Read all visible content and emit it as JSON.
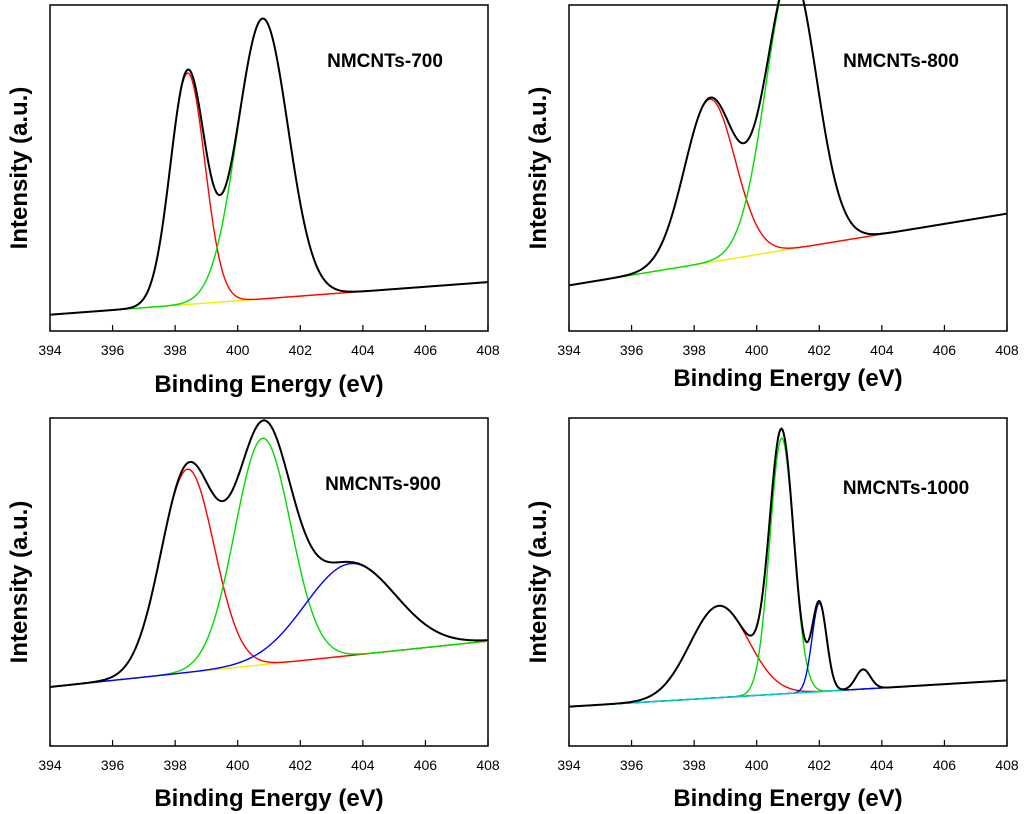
{
  "chart_data": [
    {
      "type": "line",
      "title": "NMCNTs-700",
      "xlabel": "Binding Energy (eV)",
      "ylabel": "Intensity (a.u.)",
      "xlim": [
        394,
        408
      ],
      "x_ticks": [
        "394",
        "396",
        "398",
        "400",
        "402",
        "404",
        "406",
        "408"
      ],
      "ylim": [
        0,
        100
      ],
      "baseline": {
        "x": [
          394,
          408
        ],
        "y": [
          5,
          15
        ]
      },
      "series": [
        {
          "name": "envelope",
          "color": "#000000",
          "values": "sum"
        },
        {
          "name": "peak-398.4",
          "color": "#ff0000",
          "center": 398.4,
          "fwhm": 1.3,
          "height": 71
        },
        {
          "name": "peak-400.8",
          "color": "#00dd00",
          "center": 400.8,
          "fwhm": 1.9,
          "height": 86
        }
      ],
      "baseline_color": "#eeee00"
    },
    {
      "type": "line",
      "title": "NMCNTs-800",
      "xlabel": "Binding Energy (eV)",
      "ylabel": "Intensity (a.u.)",
      "xlim": [
        394,
        408
      ],
      "x_ticks": [
        "394",
        "396",
        "398",
        "400",
        "402",
        "404",
        "406",
        "408"
      ],
      "ylim": [
        0,
        100
      ],
      "baseline": {
        "x": [
          394,
          408
        ],
        "y": [
          14,
          36
        ]
      },
      "series": [
        {
          "name": "envelope",
          "color": "#000000",
          "values": "sum"
        },
        {
          "name": "peak-398.5",
          "color": "#ff0000",
          "center": 398.5,
          "fwhm": 1.9,
          "height": 50
        },
        {
          "name": "peak-401.1",
          "color": "#00dd00",
          "center": 401.1,
          "fwhm": 1.9,
          "height": 85
        }
      ],
      "baseline_color": "#eeee00"
    },
    {
      "type": "line",
      "title": "NMCNTs-900",
      "xlabel": "Binding Energy (eV)",
      "ylabel": "Intensity (a.u.)",
      "xlim": [
        394,
        408
      ],
      "x_ticks": [
        "394",
        "396",
        "398",
        "400",
        "402",
        "404",
        "406",
        "408"
      ],
      "ylim": [
        0,
        100
      ],
      "baseline": {
        "x": [
          394,
          408
        ],
        "y": [
          18,
          32
        ]
      },
      "series": [
        {
          "name": "envelope",
          "color": "#000000",
          "values": "sum"
        },
        {
          "name": "peak-398.4",
          "color": "#ff0000",
          "center": 398.4,
          "fwhm": 2.0,
          "height": 62
        },
        {
          "name": "peak-400.8",
          "color": "#00dd00",
          "center": 400.8,
          "fwhm": 2.1,
          "height": 69
        },
        {
          "name": "peak-403.6",
          "color": "#0000ff",
          "center": 403.6,
          "fwhm": 3.4,
          "height": 28
        }
      ],
      "baseline_color": "#eeee00"
    },
    {
      "type": "line",
      "title": "NMCNTs-1000",
      "xlabel": "Binding Energy (eV)",
      "ylabel": "Intensity (a.u.)",
      "xlim": [
        394,
        408
      ],
      "x_ticks": [
        "394",
        "396",
        "398",
        "400",
        "402",
        "404",
        "406",
        "408"
      ],
      "ylim": [
        0,
        100
      ],
      "baseline": {
        "x": [
          394,
          408
        ],
        "y": [
          12,
          20
        ]
      },
      "series": [
        {
          "name": "envelope",
          "color": "#000000",
          "values": "sum"
        },
        {
          "name": "peak-398.8",
          "color": "#ff0000",
          "center": 398.8,
          "fwhm": 2.2,
          "height": 28
        },
        {
          "name": "peak-400.8",
          "color": "#00dd00",
          "center": 400.8,
          "fwhm": 0.9,
          "height": 78
        },
        {
          "name": "peak-402.0",
          "color": "#0000ff",
          "center": 402.0,
          "fwhm": 0.55,
          "height": 27
        },
        {
          "name": "peak-403.4",
          "color": "#00cccc",
          "center": 403.4,
          "fwhm": 0.55,
          "height": 6
        }
      ],
      "baseline_color": "#00ffff"
    }
  ]
}
